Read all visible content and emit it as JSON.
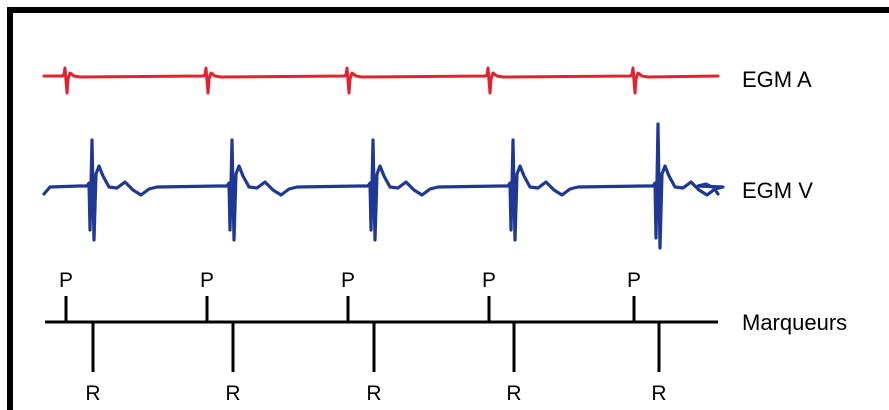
{
  "colors": {
    "egm_a": "#e8202e",
    "egm_v": "#1f3795",
    "markers": "#000000"
  },
  "traces": {
    "egm_a": {
      "label": "EGM A"
    },
    "egm_v": {
      "label": "EGM V"
    }
  },
  "markers": {
    "label": "Marqueurs",
    "p_label": "P",
    "r_label": "R",
    "beat_count": 5
  }
}
